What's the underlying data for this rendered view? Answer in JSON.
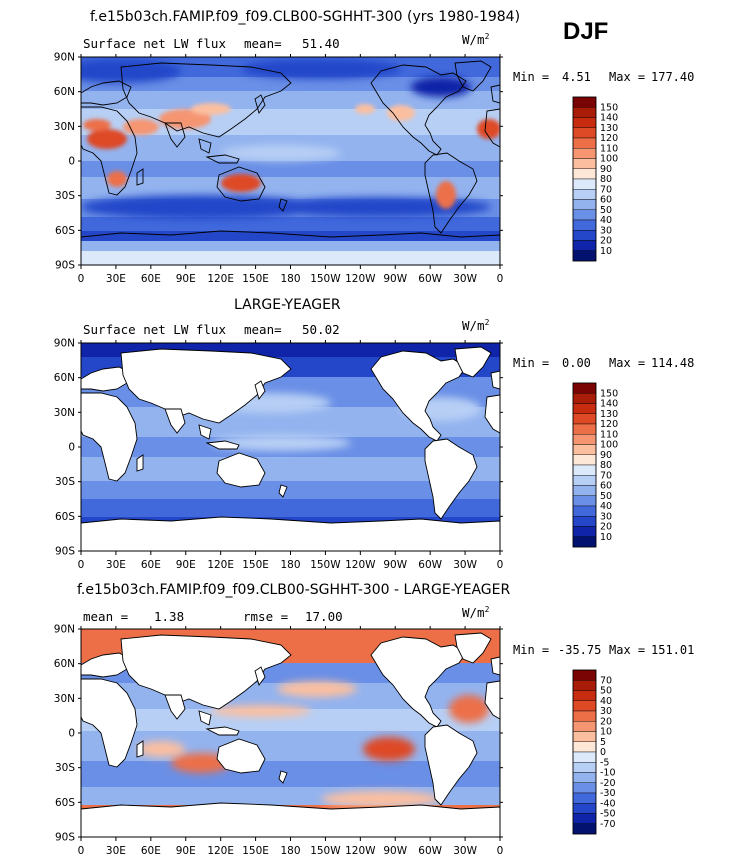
{
  "season": "DJF",
  "units": "W/m",
  "units_exp": "2",
  "lat_labels": [
    "90N",
    "60N",
    "30N",
    "0",
    "30S",
    "60S",
    "90S"
  ],
  "lon_labels": [
    "0",
    "30E",
    "60E",
    "90E",
    "120E",
    "150E",
    "180",
    "150W",
    "120W",
    "90W",
    "60W",
    "30W",
    "0"
  ],
  "panels": [
    {
      "title": "f.e15b03ch.FAMIP.f09_f09.CLB00-SGHHT-300 (yrs 1980-1984)",
      "left_label": "Surface net LW flux",
      "stat1_label": "mean=",
      "stat1_value": "51.40",
      "stat2_label": "",
      "stat2_value": "",
      "min_label": "Min =",
      "min_value": "4.51",
      "max_label": "Max =",
      "max_value": "177.40",
      "colorbar_labels": [
        "150",
        "140",
        "130",
        "120",
        "110",
        "100",
        "90",
        "80",
        "70",
        "60",
        "50",
        "40",
        "30",
        "20",
        "10"
      ],
      "colorbar_colors": [
        "#7a0403",
        "#a81c08",
        "#c82c10",
        "#de4a26",
        "#ec6f48",
        "#f59572",
        "#fbbfa0",
        "#fde8d8",
        "#dce9fb",
        "#b7cff5",
        "#93b3ef",
        "#6a8fe6",
        "#4169dc",
        "#2447c9",
        "#0f24a8",
        "#03116f"
      ]
    },
    {
      "title": "LARGE-YEAGER",
      "left_label": "Surface net LW flux",
      "stat1_label": "mean=",
      "stat1_value": "50.02",
      "stat2_label": "",
      "stat2_value": "",
      "min_label": "Min =",
      "min_value": "0.00",
      "max_label": "Max =",
      "max_value": "114.48",
      "colorbar_labels": [
        "150",
        "140",
        "130",
        "120",
        "110",
        "100",
        "90",
        "80",
        "70",
        "60",
        "50",
        "40",
        "30",
        "20",
        "10"
      ],
      "colorbar_colors": [
        "#7a0403",
        "#a81c08",
        "#c82c10",
        "#de4a26",
        "#ec6f48",
        "#f59572",
        "#fbbfa0",
        "#fde8d8",
        "#dce9fb",
        "#b7cff5",
        "#93b3ef",
        "#6a8fe6",
        "#4169dc",
        "#2447c9",
        "#0f24a8",
        "#03116f"
      ]
    },
    {
      "title": "f.e15b03ch.FAMIP.f09_f09.CLB00-SGHHT-300 - LARGE-YEAGER",
      "left_label": "",
      "stat1_label": "mean =",
      "stat1_value": "1.38",
      "stat2_label": "rmse =",
      "stat2_value": "17.00",
      "min_label": "Min =",
      "min_value": "-35.75",
      "max_label": "Max =",
      "max_value": "151.01",
      "colorbar_labels": [
        "70",
        "50",
        "40",
        "30",
        "20",
        "10",
        "5",
        "0",
        "-5",
        "-10",
        "-20",
        "-30",
        "-40",
        "-50",
        "-70"
      ],
      "colorbar_colors": [
        "#7a0403",
        "#a81c08",
        "#c82c10",
        "#de4a26",
        "#ec6f48",
        "#f59572",
        "#fbbfa0",
        "#fde8d8",
        "#dce9fb",
        "#b7cff5",
        "#93b3ef",
        "#6a8fe6",
        "#4169dc",
        "#2447c9",
        "#0f24a8",
        "#03116f"
      ]
    }
  ]
}
